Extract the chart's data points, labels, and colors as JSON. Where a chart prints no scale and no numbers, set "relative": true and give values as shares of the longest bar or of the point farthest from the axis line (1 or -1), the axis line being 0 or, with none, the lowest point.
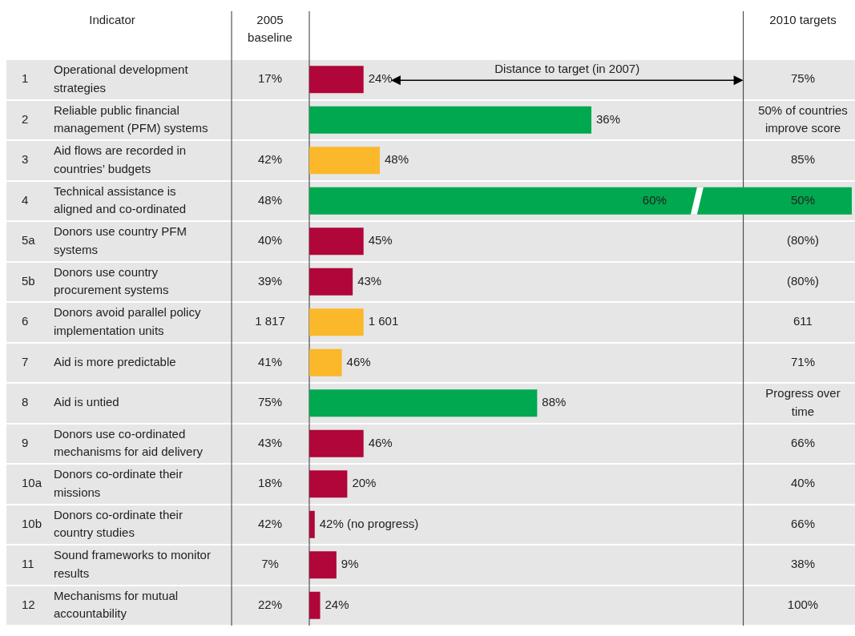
{
  "chart_data": {
    "type": "bar",
    "orientation": "horizontal",
    "relative": true,
    "categories": [
      "1 Operational development strategies",
      "2 Reliable public financial management (PFM) systems",
      "3 Aid flows are recorded in countries’ budgets",
      "4 Technical assistance is aligned and co-ordinated",
      "5a Donors use country PFM systems",
      "5b Donors use country procurement systems",
      "6 Donors avoid parallel policy implementation units",
      "7 Aid is more predictable",
      "8 Aid is untied",
      "9 Donors use co-ordinated mechanisms for aid delivery",
      "10a Donors co-ordinate their missions",
      "10b Donors co-ordinate their country studies",
      "11 Sound frameworks to monitor results",
      "12 Mechanisms for mutual accountability"
    ],
    "values": [
      0.1,
      0.52,
      0.13,
      1,
      0.1,
      0.08,
      0.1,
      0.06,
      0.42,
      0.1,
      0.07,
      0.01,
      0.05,
      0.02
    ],
    "colors": [
      "#b0063a",
      "#00a84f",
      "#fbb82b",
      "#00a84f",
      "#b0063a",
      "#b0063a",
      "#fbb82b",
      "#fbb82b",
      "#00a84f",
      "#b0063a",
      "#b0063a",
      "#b0063a",
      "#b0063a",
      "#b0063a"
    ],
    "ref_lines": [
      {
        "axis": "x",
        "value": 0.8,
        "color": "#333333"
      }
    ],
    "annotations": [
      "Indicator",
      "2005 baseline",
      "2010 targets",
      "Distance to target (in 2007)",
      "17%",
      "24%",
      "75%",
      null,
      "36%",
      "50% of countries improve score",
      "42%",
      "48%",
      "85%",
      "48%",
      "60%",
      "50%",
      "40%",
      "45%",
      "(80%)",
      "39%",
      "43%",
      "(80%)",
      "1 817",
      "1 601",
      "611",
      "41%",
      "46%",
      "71%",
      "75%",
      "88%",
      "Progress over time",
      "43%",
      "46%",
      "66%",
      "18%",
      "20%",
      "40%",
      "42%",
      "42% (no progress)",
      "66%",
      "7%",
      "9%",
      "38%",
      "22%",
      "24%",
      "100%"
    ]
  }
}
